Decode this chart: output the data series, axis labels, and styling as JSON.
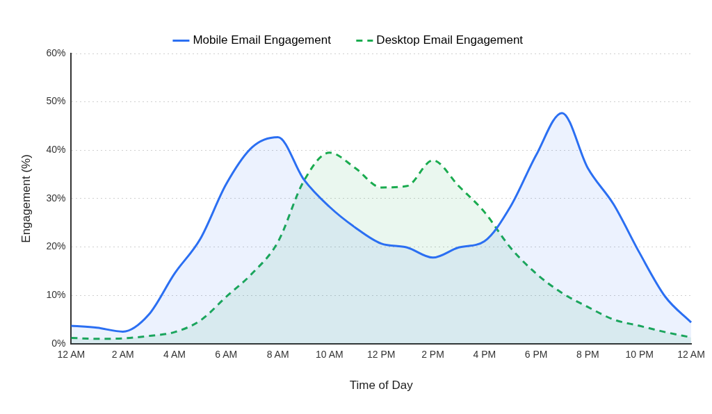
{
  "chart_data": {
    "type": "area",
    "xlabel": "Time of Day",
    "ylabel": "Engagement (%)",
    "ylim": [
      0,
      60
    ],
    "categories": [
      "12 AM",
      null,
      "2 AM",
      null,
      "4 AM",
      null,
      "6 AM",
      null,
      "8 AM",
      null,
      "10 AM",
      null,
      "12 PM",
      null,
      "2 PM",
      null,
      "4 PM",
      null,
      "6 PM",
      null,
      "8 PM",
      null,
      "10 PM",
      null,
      "12 AM"
    ],
    "yticks": [
      {
        "value": 0,
        "label": "0%"
      },
      {
        "value": 10,
        "label": "10%"
      },
      {
        "value": 20,
        "label": "20%"
      },
      {
        "value": 30,
        "label": "30%"
      },
      {
        "value": 40,
        "label": "40%"
      },
      {
        "value": 50,
        "label": "50%"
      },
      {
        "value": 60,
        "label": "60%"
      }
    ],
    "grid": "y",
    "legend": "top",
    "marker": "none",
    "series": [
      {
        "name": "Mobile Email Engagement",
        "color": "#2b6ff2",
        "line_style": "solid",
        "values": [
          3.7,
          3.3,
          2.5,
          6,
          14.5,
          21.7,
          33,
          40.6,
          42.7,
          34,
          28.3,
          24,
          20.7,
          19.9,
          17.8,
          19.9,
          21.2,
          28.3,
          39,
          47.7,
          36.3,
          28.8,
          18.8,
          9.7,
          4.4
        ]
      },
      {
        "name": "Desktop Email Engagement",
        "color": "#1aab4f",
        "line_style": "dashed",
        "values": [
          1.2,
          1,
          1.1,
          1.6,
          2.4,
          4.8,
          9.7,
          14.5,
          21,
          33.6,
          39.5,
          36.3,
          32.3,
          32.6,
          37.9,
          32.6,
          27.2,
          19.9,
          14.5,
          10.5,
          7.6,
          5,
          3.7,
          2.4,
          1.3
        ]
      }
    ]
  }
}
